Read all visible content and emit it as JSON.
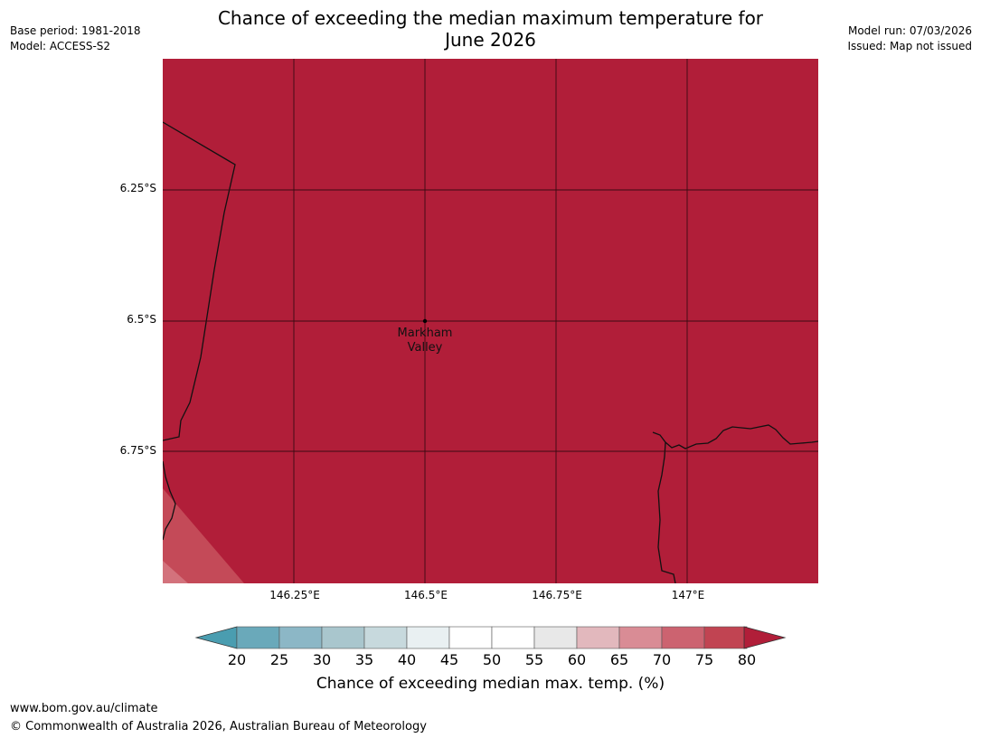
{
  "header": {
    "title_line1": "Chance of exceeding the median maximum temperature for",
    "title_line2": "June 2026",
    "base_period": "Base period: 1981-2018",
    "model": "Model: ACCESS-S2",
    "model_run": "Model run: 07/03/2026",
    "issued": "Issued: Map not issued"
  },
  "map": {
    "lat_ticks": [
      "6.25°S",
      "6.5°S",
      "6.75°S"
    ],
    "lon_ticks": [
      "146.25°E",
      "146.5°E",
      "146.75°E",
      "147°E"
    ],
    "place": {
      "line1": "Markham",
      "line2": "Valley"
    },
    "fill_colors": {
      "c80": "#b11e39",
      "c75": "#c44a58",
      "c70": "#d3727c"
    }
  },
  "colorbar": {
    "labels": [
      "20",
      "25",
      "30",
      "35",
      "40",
      "45",
      "50",
      "55",
      "60",
      "65",
      "70",
      "75",
      "80"
    ],
    "colors": [
      "#4a9db0",
      "#6aa9ba",
      "#8cb7c6",
      "#a9c6cd",
      "#c7d9dd",
      "#e9f0f2",
      "#ffffff",
      "#ffffff",
      "#e8e8e8",
      "#e2b8bd",
      "#d98c95",
      "#cc6370",
      "#c14452",
      "#b11e39"
    ],
    "title": "Chance of exceeding median max. temp. (%)"
  },
  "footer": {
    "url": "www.bom.gov.au/climate",
    "copyright": "© Commonwealth of Australia 2026, Australian Bureau of Meteorology"
  }
}
